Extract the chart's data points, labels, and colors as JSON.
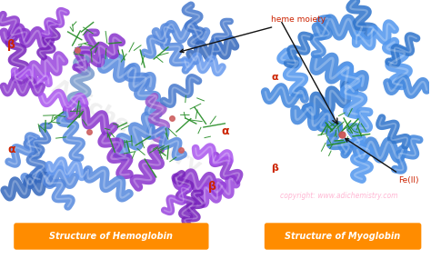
{
  "background_color": "#ffffff",
  "label_hemo": "Structure of Hemoglobin",
  "label_myo": "Structure of Myoglobin",
  "label_box_color": "#FF8C00",
  "label_text_color": "#ffffff",
  "label_fontsize": 7.0,
  "heme_label": "heme moiety",
  "fe_label": "Fe(II)",
  "beta_label": "β",
  "alpha_label": "α",
  "annotation_red": "#cc2200",
  "arrow_color": "#111111",
  "copyright_text": "copyright: www.adichem​istry.com",
  "copyright_color": "#ffaacc",
  "blue_helix": "#4472C4",
  "blue_light": "#6699DD",
  "purple_helix": "#7B2FBE",
  "purple_dark": "#5B0099",
  "green_stick": "#228B22",
  "heme_iron": "#CD853F"
}
